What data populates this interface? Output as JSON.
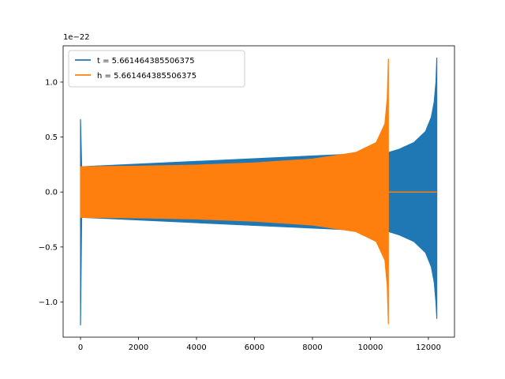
{
  "chart_data": {
    "type": "line",
    "title": "",
    "xlabel": "",
    "ylabel": "",
    "offset_label": "1e−22",
    "xlim": [
      -600,
      12900
    ],
    "ylim": [
      -1.32,
      1.33
    ],
    "x_ticks": [
      {
        "value": 0,
        "label": "0"
      },
      {
        "value": 2000,
        "label": "2000"
      },
      {
        "value": 4000,
        "label": "4000"
      },
      {
        "value": 6000,
        "label": "6000"
      },
      {
        "value": 8000,
        "label": "8000"
      },
      {
        "value": 10000,
        "label": "10000"
      },
      {
        "value": 12000,
        "label": "12000"
      }
    ],
    "y_ticks": [
      {
        "value": -1.0,
        "label": "−1.0"
      },
      {
        "value": -0.5,
        "label": "−0.5"
      },
      {
        "value": 0.0,
        "label": "0.0"
      },
      {
        "value": 0.5,
        "label": "0.5"
      },
      {
        "value": 1.0,
        "label": "1.0"
      }
    ],
    "grid": false,
    "legend_position": "top-left",
    "series": [
      {
        "name": "t = 5.661464385506375",
        "color": "#1f77b4",
        "envelope": [
          {
            "x": 0,
            "upper": 0.66,
            "lower": -1.21
          },
          {
            "x": 40,
            "upper": 0.23,
            "lower": -0.23
          },
          {
            "x": 10630,
            "upper": 0.36,
            "lower": -0.36
          },
          {
            "x": 11000,
            "upper": 0.39,
            "lower": -0.39
          },
          {
            "x": 11500,
            "upper": 0.45,
            "lower": -0.45
          },
          {
            "x": 11900,
            "upper": 0.55,
            "lower": -0.55
          },
          {
            "x": 12100,
            "upper": 0.68,
            "lower": -0.68
          },
          {
            "x": 12200,
            "upper": 0.82,
            "lower": -0.82
          },
          {
            "x": 12260,
            "upper": 1.0,
            "lower": -1.0
          },
          {
            "x": 12290,
            "upper": 1.22,
            "lower": -1.15
          }
        ]
      },
      {
        "name": "h = 5.661464385506375",
        "color": "#ff7f0e",
        "envelope": [
          {
            "x": 0,
            "upper": 0.23,
            "lower": -0.23
          },
          {
            "x": 2000,
            "upper": 0.235,
            "lower": -0.235
          },
          {
            "x": 4000,
            "upper": 0.245,
            "lower": -0.245
          },
          {
            "x": 6000,
            "upper": 0.265,
            "lower": -0.265
          },
          {
            "x": 8000,
            "upper": 0.3,
            "lower": -0.3
          },
          {
            "x": 9500,
            "upper": 0.36,
            "lower": -0.36
          },
          {
            "x": 10200,
            "upper": 0.45,
            "lower": -0.45
          },
          {
            "x": 10500,
            "upper": 0.62,
            "lower": -0.62
          },
          {
            "x": 10580,
            "upper": 0.85,
            "lower": -0.85
          },
          {
            "x": 10620,
            "upper": 1.21,
            "lower": -1.2
          }
        ],
        "tail": {
          "x_start": 10630,
          "x_end": 12290,
          "value": 0.0
        }
      }
    ]
  }
}
